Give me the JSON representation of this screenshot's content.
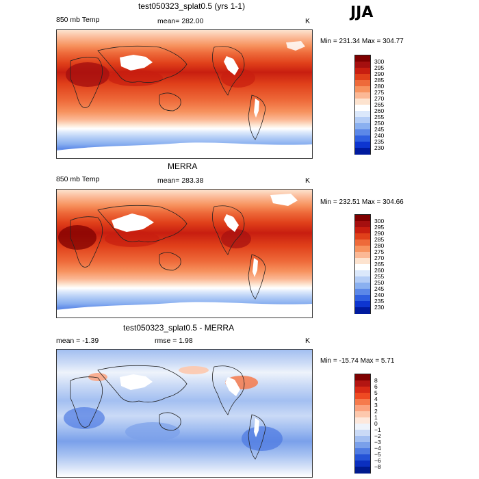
{
  "season": "JJA",
  "panels": [
    {
      "title": "test050323_splat0.5 (yrs 1-1)",
      "variable": "850 mb Temp",
      "stat": "mean=  282.00",
      "units": "K",
      "minmax": "Min = 231.34  Max = 304.77",
      "colorbar": {
        "levels": [
          "300",
          "295",
          "290",
          "285",
          "280",
          "275",
          "270",
          "265",
          "260",
          "255",
          "250",
          "245",
          "240",
          "235",
          "230"
        ],
        "colors": [
          "#7f0000",
          "#a50f0f",
          "#c81e10",
          "#e0401a",
          "#ee6a3a",
          "#f7935f",
          "#fbb895",
          "#fde3cf",
          "#ffffff",
          "#dbe8fb",
          "#b4cdf6",
          "#8ab0f0",
          "#5c88e8",
          "#2f5fe0",
          "#0d35d0",
          "#001a9e"
        ]
      }
    },
    {
      "title": "MERRA",
      "variable": "850 mb Temp",
      "stat": "mean=  283.38",
      "units": "K",
      "minmax": "Min = 232.51  Max = 304.66",
      "colorbar": {
        "levels": [
          "300",
          "295",
          "290",
          "285",
          "280",
          "275",
          "270",
          "265",
          "260",
          "255",
          "250",
          "245",
          "240",
          "235",
          "230"
        ],
        "colors": [
          "#7f0000",
          "#a50f0f",
          "#c81e10",
          "#e0401a",
          "#ee6a3a",
          "#f7935f",
          "#fbb895",
          "#fde3cf",
          "#ffffff",
          "#dbe8fb",
          "#b4cdf6",
          "#8ab0f0",
          "#5c88e8",
          "#2f5fe0",
          "#0d35d0",
          "#001a9e"
        ]
      }
    },
    {
      "title": "test050323_splat0.5 - MERRA",
      "variable": "mean =   -1.39",
      "stat": "rmse =   1.98",
      "units": "K",
      "minmax": "Min = -15.74  Max =    5.71",
      "colorbar": {
        "levels": [
          "8",
          "6",
          "5",
          "4",
          "3",
          "2",
          "1",
          "0",
          "−1",
          "−2",
          "−3",
          "−4",
          "−5",
          "−6",
          "−8"
        ],
        "colors": [
          "#7f0000",
          "#b31512",
          "#d82a16",
          "#ef4a22",
          "#f67a4c",
          "#fba27e",
          "#fdc8ad",
          "#fde8dc",
          "#eef3fb",
          "#cadaf6",
          "#a3bff1",
          "#7aa0ea",
          "#4f7be2",
          "#2452d6",
          "#0b2fbf",
          "#001a8e"
        ]
      }
    }
  ]
}
